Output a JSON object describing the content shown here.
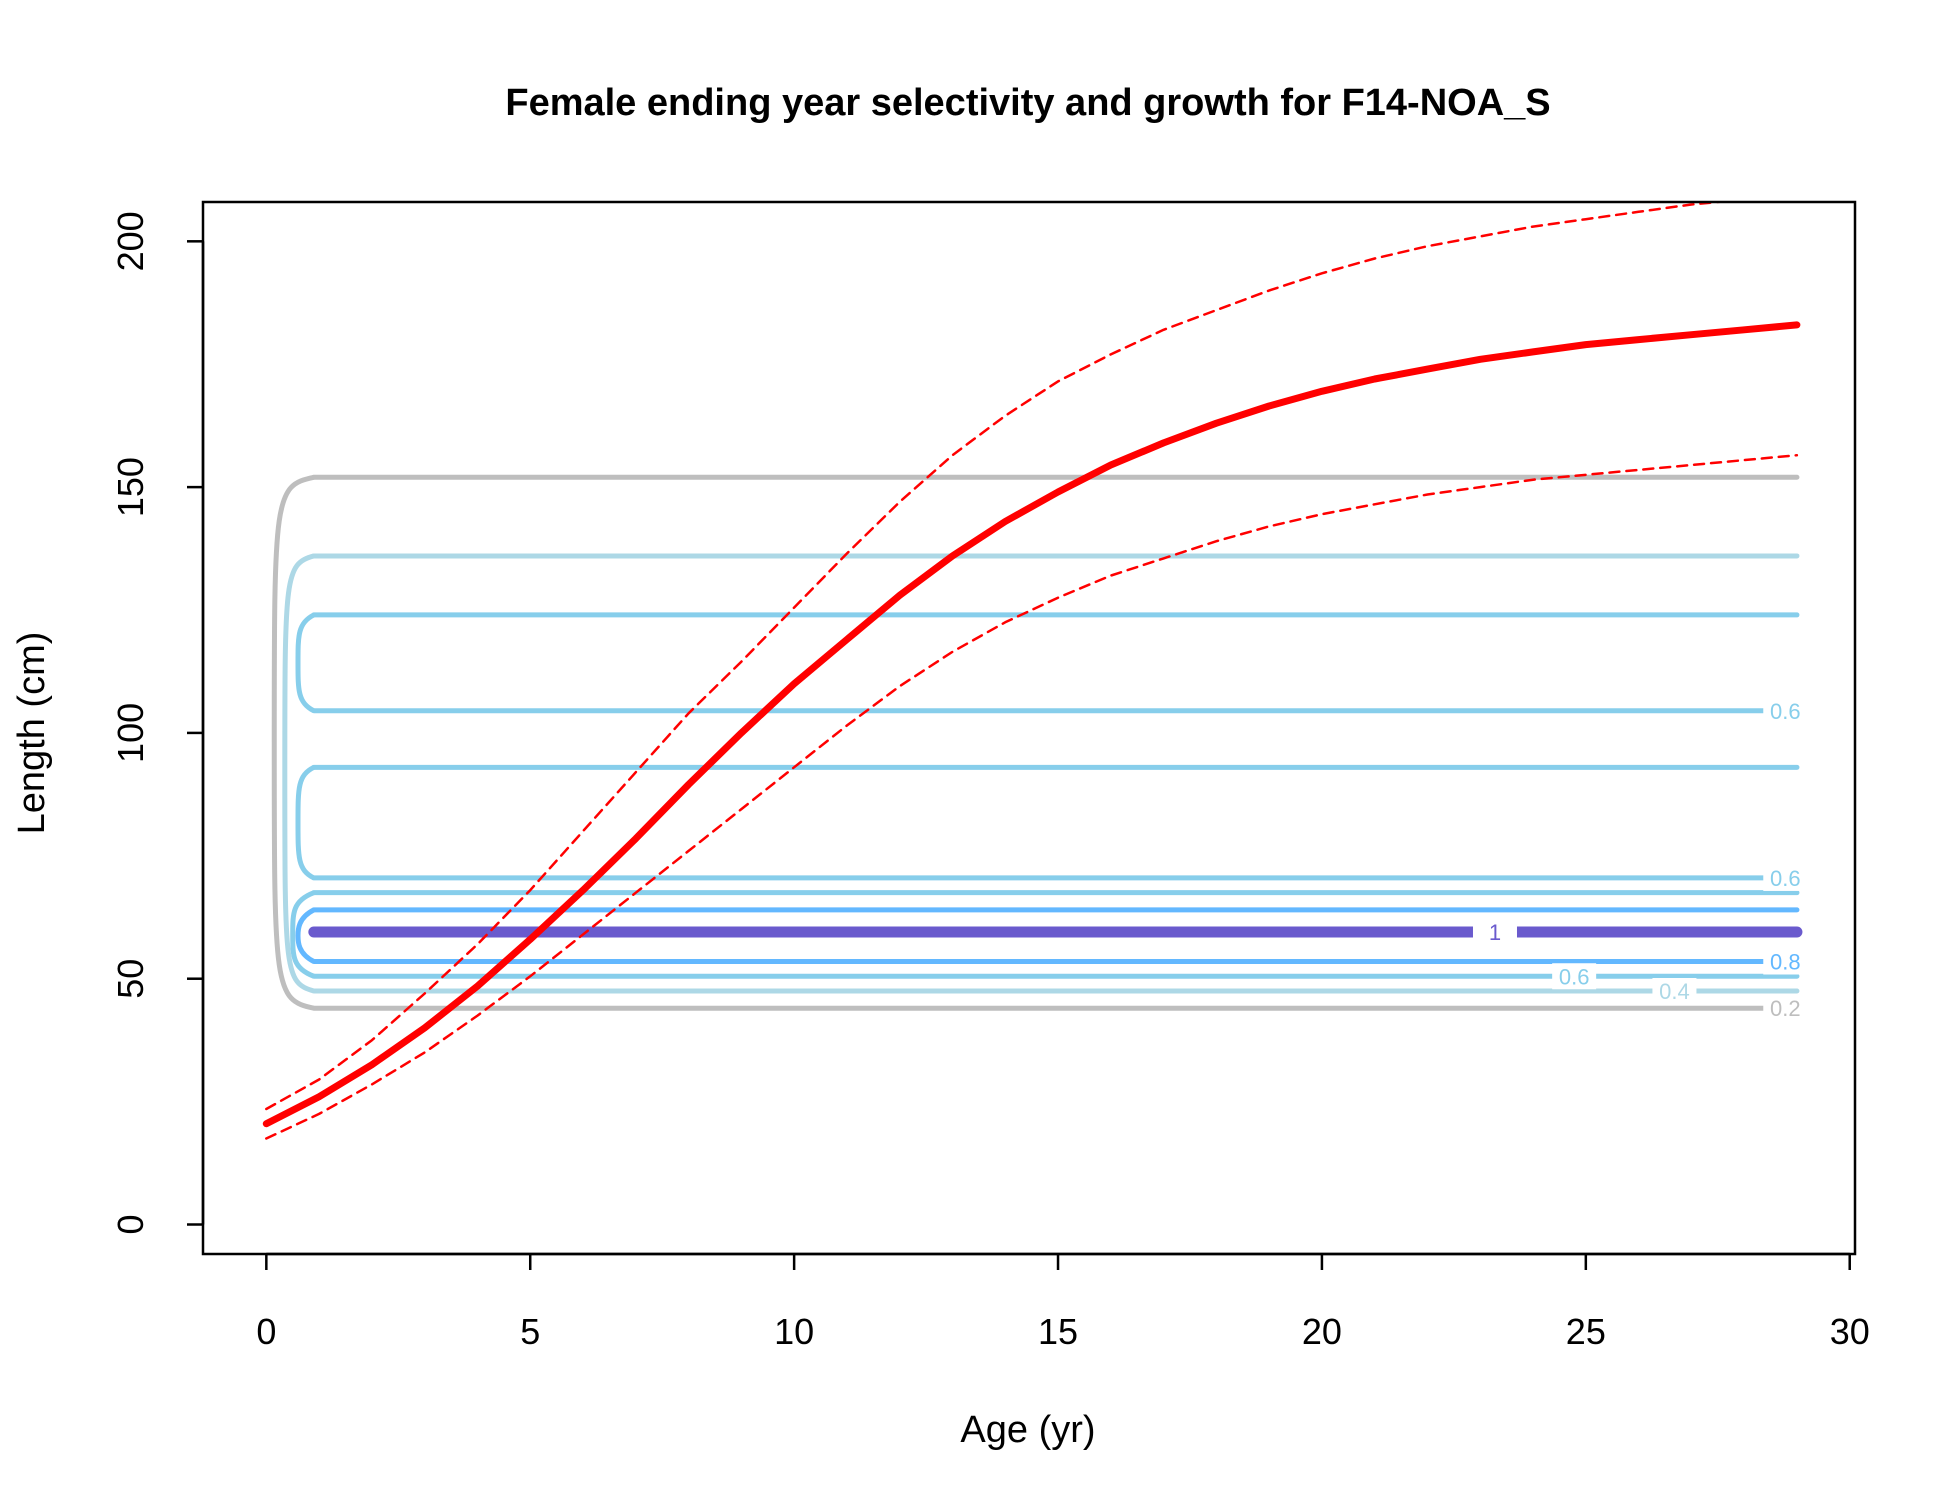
{
  "chart_data": {
    "type": "line",
    "title": "Female ending year selectivity and growth for F14-NOA_S",
    "xlabel": "Age (yr)",
    "ylabel": "Length (cm)",
    "xlim": [
      -1.2,
      30.1
    ],
    "ylim": [
      -6,
      208
    ],
    "x_ticks": [
      0,
      5,
      10,
      15,
      20,
      25,
      30
    ],
    "y_ticks": [
      0,
      50,
      100,
      150,
      200
    ],
    "grid": false,
    "series": [
      {
        "role": "growth-mean",
        "color": "#ff0000",
        "style": "solid",
        "x": [
          0,
          1,
          2,
          3,
          4,
          5,
          6,
          7,
          8,
          9,
          10,
          11,
          12,
          13,
          14,
          15,
          16,
          17,
          18,
          19,
          20,
          21,
          22,
          23,
          24,
          25,
          26,
          27,
          28,
          29
        ],
        "values": [
          20.5,
          26,
          32.5,
          40,
          48.5,
          58,
          68,
          78.5,
          89.5,
          100,
          110,
          119,
          128,
          136,
          143,
          149,
          154.5,
          159,
          163,
          166.5,
          169.5,
          172,
          174,
          176,
          177.5,
          179,
          180,
          181,
          182,
          183
        ]
      },
      {
        "role": "growth-upper",
        "color": "#ff0000",
        "style": "dashed",
        "x": [
          0,
          1,
          2,
          3,
          4,
          5,
          6,
          7,
          8,
          9,
          10,
          11,
          12,
          13,
          14,
          15,
          16,
          17,
          18,
          19,
          20,
          21,
          22,
          23,
          24,
          25,
          26,
          27,
          28,
          29
        ],
        "values": [
          23.5,
          29.5,
          37.5,
          47,
          57,
          68,
          80,
          92,
          104,
          114.5,
          125.5,
          136.5,
          147,
          156.5,
          164.5,
          171.5,
          177,
          182,
          186,
          190,
          193.5,
          196.5,
          199,
          201,
          203,
          204.5,
          206,
          207.5,
          208.5,
          209.5
        ]
      },
      {
        "role": "growth-lower",
        "color": "#ff0000",
        "style": "dashed",
        "x": [
          0,
          1,
          2,
          3,
          4,
          5,
          6,
          7,
          8,
          9,
          10,
          11,
          12,
          13,
          14,
          15,
          16,
          17,
          18,
          19,
          20,
          21,
          22,
          23,
          24,
          25,
          26,
          27,
          28,
          29
        ],
        "values": [
          17.5,
          22.5,
          28.5,
          35,
          42.5,
          50.5,
          59,
          67.5,
          76,
          84.5,
          93,
          101.5,
          109.5,
          116.5,
          122.5,
          127.5,
          132,
          135.5,
          139,
          142,
          144.5,
          146.5,
          148.5,
          150,
          151.5,
          152.5,
          153.5,
          154.5,
          155.5,
          156.5
        ]
      }
    ],
    "selectivity_contours": [
      {
        "level": "0.2",
        "length": 44,
        "color": "#bebebe",
        "width": 5
      },
      {
        "level": "0.4",
        "length": 47.5,
        "color": "#add8e6",
        "width": 5
      },
      {
        "level": "0.6",
        "length": 50.5,
        "color": "#87ceeb",
        "width": 5
      },
      {
        "level": "0.8",
        "length": 53.5,
        "color": "#63b8ff",
        "width": 5
      },
      {
        "level": "1",
        "length": 59.5,
        "color": "#6a5acd",
        "width": 11
      },
      {
        "level": "0.8",
        "length": 64,
        "color": "#63b8ff",
        "width": 5
      },
      {
        "level": "0.6",
        "length": 67.5,
        "color": "#87ceeb",
        "width": 5
      },
      {
        "level": "0.6",
        "length": 70.5,
        "color": "#87ceeb",
        "width": 5
      },
      {
        "level": "0.6",
        "length": 93,
        "color": "#87ceeb",
        "width": 5
      },
      {
        "level": "0.6",
        "length": 104.5,
        "color": "#87ceeb",
        "width": 5
      },
      {
        "level": "0.6",
        "length": 124,
        "color": "#87ceeb",
        "width": 5
      },
      {
        "level": "0.4",
        "length": 136,
        "color": "#add8e6",
        "width": 5
      },
      {
        "level": "0.2",
        "length": 152,
        "color": "#bebebe",
        "width": 5
      }
    ],
    "contour_labels": [
      {
        "text": "0.6",
        "x": 28.4,
        "y": 104.5,
        "color": "#87ceeb"
      },
      {
        "text": "0.6",
        "x": 28.4,
        "y": 70.5,
        "color": "#87ceeb"
      },
      {
        "text": "0.8",
        "x": 28.4,
        "y": 53.5,
        "color": "#63b8ff"
      },
      {
        "text": "0.6",
        "x": 24.4,
        "y": 50.5,
        "color": "#87ceeb"
      },
      {
        "text": "0.4",
        "x": 26.3,
        "y": 47.5,
        "color": "#add8e6"
      },
      {
        "text": "0.2",
        "x": 28.4,
        "y": 44,
        "color": "#bebebe"
      },
      {
        "text": "1",
        "x": 22.9,
        "y": 59.5,
        "color": "#6a5acd"
      }
    ],
    "contour_x_range": [
      0.9,
      29
    ]
  }
}
